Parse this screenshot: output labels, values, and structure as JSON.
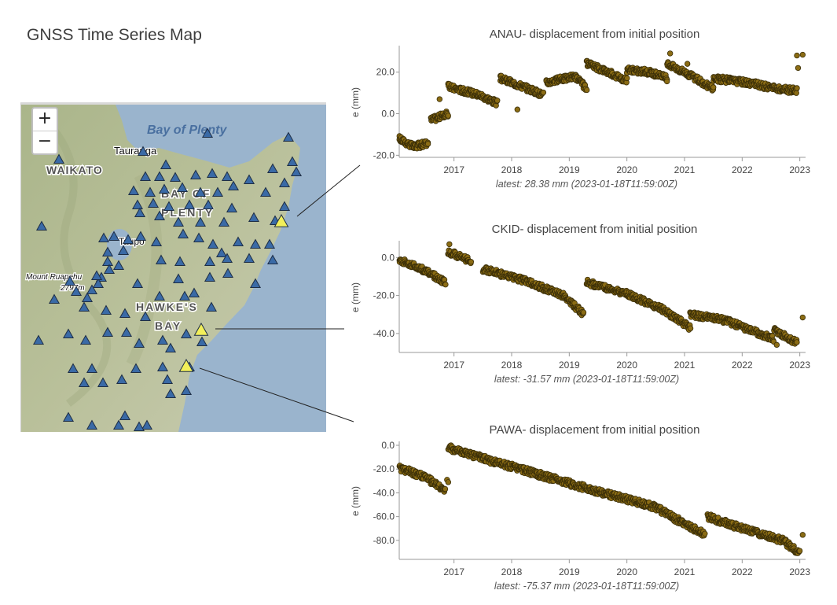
{
  "page": {
    "title": "GNSS Time Series Map"
  },
  "map": {
    "zoom_in": "+",
    "zoom_out": "−",
    "labels": {
      "bay_of_plenty_sea": "Bay of Plenty",
      "tauranga": "Tauranga",
      "waikato": "WAIKATO",
      "bay_of": "BAY OF",
      "plenty": "PLENTY",
      "taupo": "Taupo",
      "ruapehu": "Mount Ruapehu",
      "ruapehu_elev": "2797m",
      "hawkes": "HAWKE'S",
      "bay": "BAY"
    },
    "colors": {
      "station": "#3a6aa6",
      "selected_station": "#f2ef5a",
      "sea": "#9ab4cd",
      "land": "#b5bd93"
    }
  },
  "chart_data": [
    {
      "type": "scatter",
      "station": "ANAU",
      "title": "ANAU- displacement from initial position",
      "ylabel": "e (mm)",
      "xlabel": "",
      "xlim": [
        2016.05,
        2023.1
      ],
      "ylim": [
        -21,
        32
      ],
      "yticks": [
        -20.0,
        0.0,
        20.0
      ],
      "ytick_labels": [
        "-20.0",
        "0.0",
        "20.0"
      ],
      "xticks": [
        2017,
        2018,
        2019,
        2020,
        2021,
        2022,
        2023
      ],
      "xtick_labels": [
        "2017",
        "2018",
        "2019",
        "2020",
        "2021",
        "2022",
        "2023"
      ],
      "latest_label": "latest: 28.38 mm (2023-01-18T11:59:00Z)",
      "marker_color": "#8b6c14",
      "marker_edge": "#3a2e08",
      "grid": false,
      "segments": [
        {
          "x": [
            2016.05,
            2016.3,
            2016.55
          ],
          "y": [
            -12,
            -16,
            -14
          ]
        },
        {
          "x": [
            2016.6,
            2016.9
          ],
          "y": [
            -3,
            0
          ]
        },
        {
          "x": [
            2016.9,
            2017.45,
            2017.75
          ],
          "y": [
            13,
            9,
            5
          ]
        },
        {
          "x": [
            2017.8,
            2018.2,
            2018.55
          ],
          "y": [
            17,
            13,
            9
          ]
        },
        {
          "x": [
            2018.6,
            2019.1,
            2019.3
          ],
          "y": [
            15,
            18,
            12
          ]
        },
        {
          "x": [
            2019.3,
            2019.6,
            2020.0
          ],
          "y": [
            24,
            21,
            16
          ]
        },
        {
          "x": [
            2020.0,
            2020.4,
            2020.7
          ],
          "y": [
            21,
            20,
            17
          ]
        },
        {
          "x": [
            2020.7,
            2021.0,
            2021.5
          ],
          "y": [
            24,
            20,
            12
          ]
        },
        {
          "x": [
            2021.5,
            2022.1,
            2022.6,
            2022.95
          ],
          "y": [
            17,
            15,
            12,
            11
          ]
        }
      ],
      "outliers": [
        {
          "x": 2016.75,
          "y": 7
        },
        {
          "x": 2020.75,
          "y": 29
        },
        {
          "x": 2021.05,
          "y": 24
        },
        {
          "x": 2022.95,
          "y": 28
        },
        {
          "x": 2022.97,
          "y": 22
        },
        {
          "x": 2018.1,
          "y": 2
        }
      ],
      "last": {
        "x": 2023.05,
        "y": 28.38
      }
    },
    {
      "type": "scatter",
      "station": "CKID",
      "title": "CKID- displacement from initial position",
      "ylabel": "e (mm)",
      "xlabel": "",
      "xlim": [
        2016.05,
        2023.1
      ],
      "ylim": [
        -50,
        8
      ],
      "yticks": [
        -40.0,
        -20.0,
        0.0
      ],
      "ytick_labels": [
        "-40.0",
        "-20.0",
        "0.0"
      ],
      "xticks": [
        2017,
        2018,
        2019,
        2020,
        2021,
        2022,
        2023
      ],
      "xtick_labels": [
        "2017",
        "2018",
        "2019",
        "2020",
        "2021",
        "2022",
        "2023"
      ],
      "latest_label": "latest: -31.57 mm (2023-01-18T11:59:00Z)",
      "marker_color": "#8b6c14",
      "marker_edge": "#3a2e08",
      "grid": false,
      "segments": [
        {
          "x": [
            2016.05,
            2016.5,
            2016.85
          ],
          "y": [
            -1,
            -7,
            -13
          ]
        },
        {
          "x": [
            2016.9,
            2017.3
          ],
          "y": [
            3,
            -2
          ]
        },
        {
          "x": [
            2017.5,
            2018.2,
            2018.9,
            2019.25
          ],
          "y": [
            -6,
            -12,
            -20,
            -30
          ]
        },
        {
          "x": [
            2019.3,
            2020.0,
            2020.6,
            2021.1
          ],
          "y": [
            -13,
            -19,
            -27,
            -37
          ]
        },
        {
          "x": [
            2021.1,
            2021.7,
            2022.3,
            2022.55
          ],
          "y": [
            -30,
            -33,
            -40,
            -43
          ]
        },
        {
          "x": [
            2022.55,
            2022.95
          ],
          "y": [
            -38,
            -45
          ]
        }
      ],
      "outliers": [
        {
          "x": 2016.92,
          "y": 7
        },
        {
          "x": 2022.6,
          "y": -46
        }
      ],
      "last": {
        "x": 2023.05,
        "y": -31.57
      }
    },
    {
      "type": "scatter",
      "station": "PAWA",
      "title": "PAWA- displacement from initial position",
      "ylabel": "e (mm)",
      "xlabel": "",
      "xlim": [
        2016.05,
        2023.1
      ],
      "ylim": [
        -96,
        2
      ],
      "yticks": [
        -80.0,
        -60.0,
        -40.0,
        -20.0,
        0.0
      ],
      "ytick_labels": [
        "-80.0",
        "-60.0",
        "-40.0",
        "-20.0",
        "0.0"
      ],
      "xticks": [
        2017,
        2018,
        2019,
        2020,
        2021,
        2022,
        2023
      ],
      "xtick_labels": [
        "2017",
        "2018",
        "2019",
        "2020",
        "2021",
        "2022",
        "2023"
      ],
      "latest_label": "latest: -75.37 mm (2023-01-18T11:59:00Z)",
      "marker_color": "#8b6c14",
      "marker_edge": "#3a2e08",
      "grid": false,
      "segments": [
        {
          "x": [
            2016.05,
            2016.5,
            2016.85
          ],
          "y": [
            -19,
            -27,
            -38
          ]
        },
        {
          "x": [
            2016.9,
            2017.5,
            2018.5,
            2019.5,
            2020.5,
            2021.1,
            2021.35
          ],
          "y": [
            -2,
            -11,
            -25,
            -39,
            -52,
            -69,
            -75
          ]
        },
        {
          "x": [
            2021.4,
            2022.0,
            2022.7,
            2023.0
          ],
          "y": [
            -60,
            -70,
            -80,
            -91
          ]
        }
      ],
      "outliers": [
        {
          "x": 2016.88,
          "y": -29
        },
        {
          "x": 2016.9,
          "y": -31
        }
      ],
      "last": {
        "x": 2023.05,
        "y": -75.37
      }
    }
  ]
}
